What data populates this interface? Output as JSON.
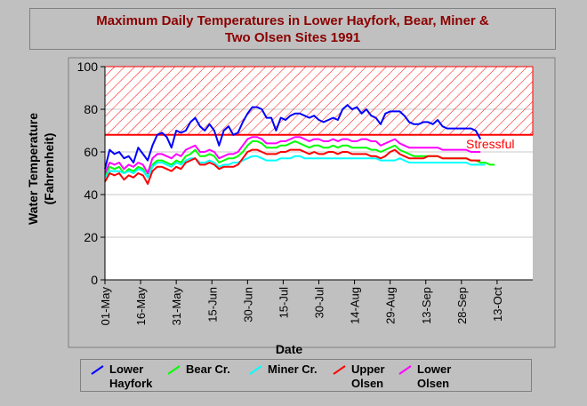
{
  "chart_data": {
    "type": "line",
    "title_line1": "Maximum Daily Temperatures in Lower Hayfork, Bear, Miner &",
    "title_line2": "Two Olsen Sites 1991",
    "xlabel": "Date",
    "ylabel_line1": "Water Temperature",
    "ylabel_line2": "(Fahrenheit)",
    "ylim": [
      0,
      100
    ],
    "xlim": [
      0,
      180
    ],
    "yticks": [
      0,
      20,
      40,
      60,
      80,
      100
    ],
    "xticks": [
      {
        "day": 0,
        "label": "01-May"
      },
      {
        "day": 15,
        "label": "16-May"
      },
      {
        "day": 30,
        "label": "31-May"
      },
      {
        "day": 45,
        "label": "15-Jun"
      },
      {
        "day": 60,
        "label": "30-Jun"
      },
      {
        "day": 75,
        "label": "15-Jul"
      },
      {
        "day": 90,
        "label": "30-Jul"
      },
      {
        "day": 105,
        "label": "14-Aug"
      },
      {
        "day": 120,
        "label": "29-Aug"
      },
      {
        "day": 135,
        "label": "13-Sep"
      },
      {
        "day": 150,
        "label": "28-Sep"
      },
      {
        "day": 165,
        "label": "13-Oct"
      }
    ],
    "threshold": {
      "value": 68,
      "label": "Stressful",
      "color": "#ff0000"
    },
    "stress_band": [
      68,
      100
    ],
    "grid": true,
    "series": [
      {
        "name": "Lower Hayfork",
        "legend_line1": "Lower",
        "legend_line2": "Hayfork",
        "color": "#0000ff",
        "x": [
          0,
          2,
          4,
          6,
          8,
          10,
          12,
          14,
          16,
          18,
          20,
          22,
          24,
          26,
          28,
          30,
          32,
          34,
          36,
          38,
          40,
          42,
          44,
          46,
          48,
          50,
          52,
          54,
          56,
          58,
          60,
          62,
          64,
          66,
          68,
          70,
          72,
          74,
          76,
          78,
          80,
          82,
          84,
          86,
          88,
          90,
          92,
          94,
          96,
          98,
          100,
          102,
          104,
          106,
          108,
          110,
          112,
          114,
          116,
          118,
          120,
          122,
          124,
          126,
          128,
          130,
          132,
          134,
          136,
          138,
          140,
          142,
          144,
          146,
          148,
          150,
          152,
          154,
          156,
          158
        ],
        "y": [
          52,
          61,
          59,
          60,
          57,
          58,
          55,
          62,
          59,
          56,
          63,
          68,
          69,
          67,
          62,
          70,
          69,
          70,
          74,
          76,
          72,
          70,
          73,
          70,
          63,
          70,
          72,
          68,
          69,
          74,
          78,
          81,
          81,
          80,
          76,
          76,
          70,
          76,
          75,
          77,
          78,
          78,
          77,
          76,
          77,
          75,
          74,
          75,
          76,
          75,
          80,
          82,
          80,
          81,
          78,
          80,
          77,
          76,
          73,
          78,
          79,
          79,
          79,
          77,
          74,
          73,
          73,
          74,
          74,
          73,
          75,
          72,
          71,
          71,
          71,
          71,
          71,
          71,
          70,
          66
        ]
      },
      {
        "name": "Bear Cr.",
        "legend_line1": "Bear Cr.",
        "legend_line2": "",
        "color": "#00ff00",
        "x": [
          0,
          2,
          4,
          6,
          8,
          10,
          12,
          14,
          16,
          18,
          20,
          22,
          24,
          26,
          28,
          30,
          32,
          34,
          36,
          38,
          40,
          42,
          44,
          46,
          48,
          50,
          52,
          54,
          56,
          58,
          60,
          62,
          64,
          66,
          68,
          70,
          72,
          74,
          76,
          78,
          80,
          82,
          84,
          86,
          88,
          90,
          92,
          94,
          96,
          98,
          100,
          102,
          104,
          106,
          108,
          110,
          112,
          114,
          116,
          118,
          120,
          122,
          124,
          126,
          128,
          130,
          132,
          134,
          136,
          138,
          140,
          142,
          144,
          146,
          148,
          150,
          152,
          154,
          156,
          158,
          160,
          162,
          164
        ],
        "y": [
          49,
          53,
          52,
          53,
          50,
          52,
          51,
          53,
          52,
          48,
          54,
          56,
          56,
          55,
          54,
          56,
          55,
          58,
          59,
          61,
          58,
          58,
          59,
          58,
          55,
          56,
          57,
          57,
          58,
          60,
          63,
          65,
          65,
          64,
          62,
          62,
          62,
          63,
          63,
          64,
          65,
          64,
          63,
          62,
          63,
          63,
          62,
          62,
          63,
          62,
          63,
          63,
          62,
          62,
          62,
          62,
          61,
          61,
          60,
          61,
          62,
          63,
          61,
          60,
          59,
          58,
          58,
          58,
          58,
          58,
          58,
          57,
          57,
          57,
          57,
          57,
          57,
          56,
          56,
          55,
          55,
          54,
          54
        ]
      },
      {
        "name": "Miner Cr.",
        "legend_line1": "Miner Cr.",
        "legend_line2": "",
        "color": "#00ffff",
        "x": [
          0,
          2,
          4,
          6,
          8,
          10,
          12,
          14,
          16,
          18,
          20,
          22,
          24,
          26,
          28,
          30,
          32,
          34,
          36,
          38,
          40,
          42,
          44,
          46,
          48,
          50,
          52,
          54,
          56,
          58,
          60,
          62,
          64,
          66,
          68,
          70,
          72,
          74,
          76,
          78,
          80,
          82,
          84,
          86,
          88,
          90,
          92,
          94,
          96,
          98,
          100,
          102,
          104,
          106,
          108,
          110,
          112,
          114,
          116,
          118,
          120,
          122,
          124,
          126,
          128,
          130,
          132,
          134,
          136,
          138,
          140,
          142,
          144,
          146,
          148,
          150,
          152,
          154,
          156,
          158,
          160
        ],
        "y": [
          48,
          51,
          51,
          51,
          50,
          51,
          50,
          52,
          51,
          48,
          53,
          55,
          55,
          54,
          53,
          55,
          54,
          56,
          57,
          57,
          55,
          55,
          56,
          55,
          53,
          54,
          54,
          55,
          55,
          56,
          57,
          58,
          58,
          57,
          56,
          56,
          56,
          57,
          57,
          57,
          58,
          58,
          57,
          57,
          57,
          57,
          57,
          57,
          57,
          57,
          57,
          57,
          57,
          57,
          57,
          57,
          57,
          57,
          56,
          56,
          56,
          56,
          57,
          56,
          55,
          55,
          55,
          55,
          55,
          55,
          55,
          55,
          55,
          55,
          55,
          55,
          55,
          54,
          54,
          54,
          54
        ]
      },
      {
        "name": "Upper Olsen",
        "legend_line1": "Upper",
        "legend_line2": "Olsen",
        "color": "#ff0000",
        "x": [
          0,
          2,
          4,
          6,
          8,
          10,
          12,
          14,
          16,
          18,
          20,
          22,
          24,
          26,
          28,
          30,
          32,
          34,
          36,
          38,
          40,
          42,
          44,
          46,
          48,
          50,
          52,
          54,
          56,
          58,
          60,
          62,
          64,
          66,
          68,
          70,
          72,
          74,
          76,
          78,
          80,
          82,
          84,
          86,
          88,
          90,
          92,
          94,
          96,
          98,
          100,
          102,
          104,
          106,
          108,
          110,
          112,
          114,
          116,
          118,
          120,
          122,
          124,
          126,
          128,
          130,
          132,
          134,
          136,
          138,
          140,
          142,
          144,
          146,
          148,
          150,
          152,
          154,
          156,
          158
        ],
        "y": [
          46,
          50,
          49,
          50,
          47,
          49,
          48,
          50,
          49,
          45,
          51,
          53,
          53,
          52,
          51,
          53,
          52,
          55,
          56,
          57,
          54,
          54,
          55,
          54,
          52,
          53,
          53,
          53,
          54,
          57,
          60,
          61,
          61,
          60,
          59,
          59,
          59,
          60,
          60,
          61,
          61,
          61,
          60,
          59,
          60,
          59,
          59,
          60,
          60,
          59,
          60,
          60,
          59,
          59,
          59,
          59,
          58,
          58,
          57,
          58,
          60,
          61,
          59,
          58,
          57,
          57,
          57,
          57,
          58,
          58,
          58,
          57,
          57,
          57,
          57,
          57,
          57,
          56,
          56,
          56
        ]
      },
      {
        "name": "Lower Olsen",
        "legend_line1": "Lower",
        "legend_line2": "Olsen",
        "color": "#ff00ff",
        "x": [
          0,
          2,
          4,
          6,
          8,
          10,
          12,
          14,
          16,
          18,
          20,
          22,
          24,
          26,
          28,
          30,
          32,
          34,
          36,
          38,
          40,
          42,
          44,
          46,
          48,
          50,
          52,
          54,
          56,
          58,
          60,
          62,
          64,
          66,
          68,
          70,
          72,
          74,
          76,
          78,
          80,
          82,
          84,
          86,
          88,
          90,
          92,
          94,
          96,
          98,
          100,
          102,
          104,
          106,
          108,
          110,
          112,
          114,
          116,
          118,
          120,
          122,
          124,
          126,
          128,
          130,
          132,
          134,
          136,
          138,
          140,
          142,
          144,
          146,
          148,
          150,
          152,
          154,
          156,
          158
        ],
        "y": [
          50,
          55,
          54,
          55,
          52,
          54,
          53,
          55,
          54,
          50,
          57,
          59,
          59,
          58,
          57,
          59,
          58,
          61,
          62,
          63,
          60,
          60,
          61,
          60,
          57,
          58,
          59,
          59,
          60,
          63,
          66,
          67,
          67,
          66,
          64,
          64,
          64,
          65,
          65,
          66,
          67,
          67,
          66,
          65,
          66,
          66,
          65,
          65,
          66,
          65,
          66,
          66,
          65,
          65,
          66,
          66,
          65,
          65,
          63,
          64,
          65,
          66,
          64,
          63,
          62,
          62,
          62,
          62,
          62,
          62,
          62,
          61,
          61,
          61,
          61,
          61,
          61,
          60,
          60,
          60
        ]
      }
    ]
  }
}
